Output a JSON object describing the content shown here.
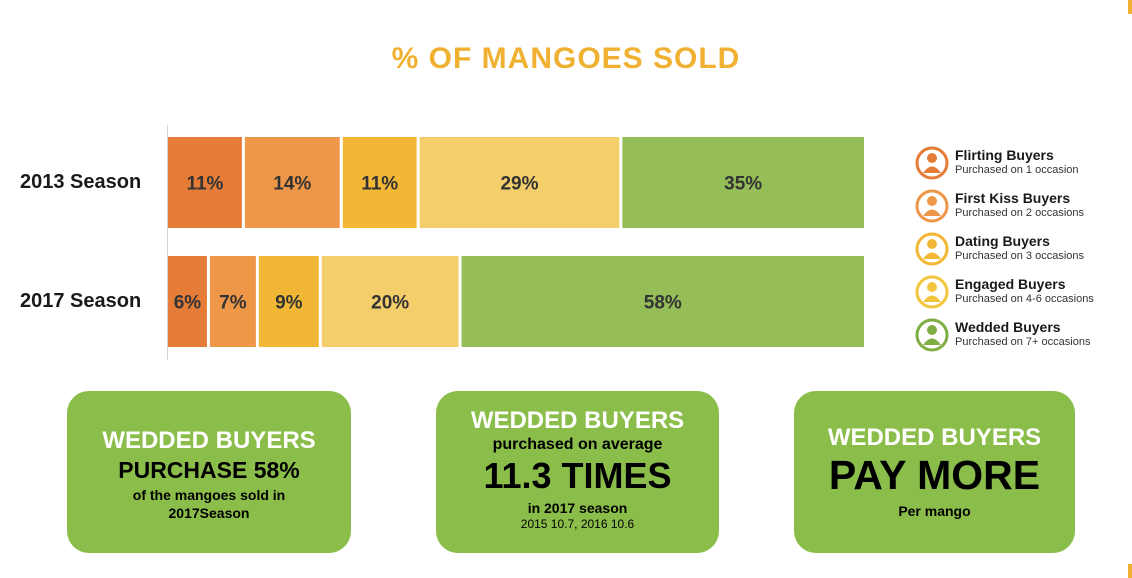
{
  "chart_data": {
    "type": "bar",
    "stacked": true,
    "horizontal": true,
    "title": "% OF MANGOES SOLD",
    "categories": [
      "2013 Season",
      "2017 Season"
    ],
    "series": [
      {
        "name": "Flirting Buyers",
        "values": [
          11,
          6
        ],
        "labels": [
          "11%",
          "6%"
        ],
        "color": "#e57c37"
      },
      {
        "name": "First Kiss Buyers",
        "values": [
          14,
          7
        ],
        "labels": [
          "14%",
          "7%"
        ],
        "color": "#ee9748"
      },
      {
        "name": "Dating Buyers",
        "values": [
          11,
          9
        ],
        "labels": [
          "11%",
          "9%"
        ],
        "color": "#f2b835"
      },
      {
        "name": "Engaged Buyers",
        "values": [
          29,
          20
        ],
        "labels": [
          "29%",
          "20%"
        ],
        "color": "#f4ce6a"
      },
      {
        "name": "Wedded Buyers",
        "values": [
          35,
          58
        ],
        "labels": [
          "35%",
          "58%"
        ],
        "color": "#95bd58"
      }
    ],
    "legend_position": "right"
  },
  "legend": [
    {
      "name": "Flirting Buyers",
      "sub": "Purchased on 1 occasion",
      "color": "#e57c37"
    },
    {
      "name": "First Kiss Buyers",
      "sub": "Purchased on 2 occasions",
      "color": "#ee9748"
    },
    {
      "name": "Dating Buyers",
      "sub": "Purchased on 3 occasions",
      "color": "#f2b835"
    },
    {
      "name": "Engaged Buyers",
      "sub": "Purchased on 4-6 occasions",
      "color": "#f4ce6a"
    },
    {
      "name": "Wedded Buyers",
      "sub": "Purchased on 7+ occasions",
      "color": "#95bd58"
    }
  ],
  "cards": [
    {
      "heading": "WEDDED BUYERS",
      "big": "PURCHASE 58%",
      "line1": "of the mangoes sold in",
      "line2": "2017Season"
    },
    {
      "heading": "WEDDED BUYERS",
      "line1": "purchased on average",
      "big": "11.3 TIMES",
      "line2": "in 2017 season",
      "line3": "2015 10.7, 2016 10.6"
    },
    {
      "heading": "WEDDED BUYERS",
      "big": "PAY MORE",
      "line1": "Per mango"
    }
  ],
  "colors": {
    "accent": "#f0b132",
    "card": "#8bbd4a",
    "text": "#1a1a1a"
  }
}
